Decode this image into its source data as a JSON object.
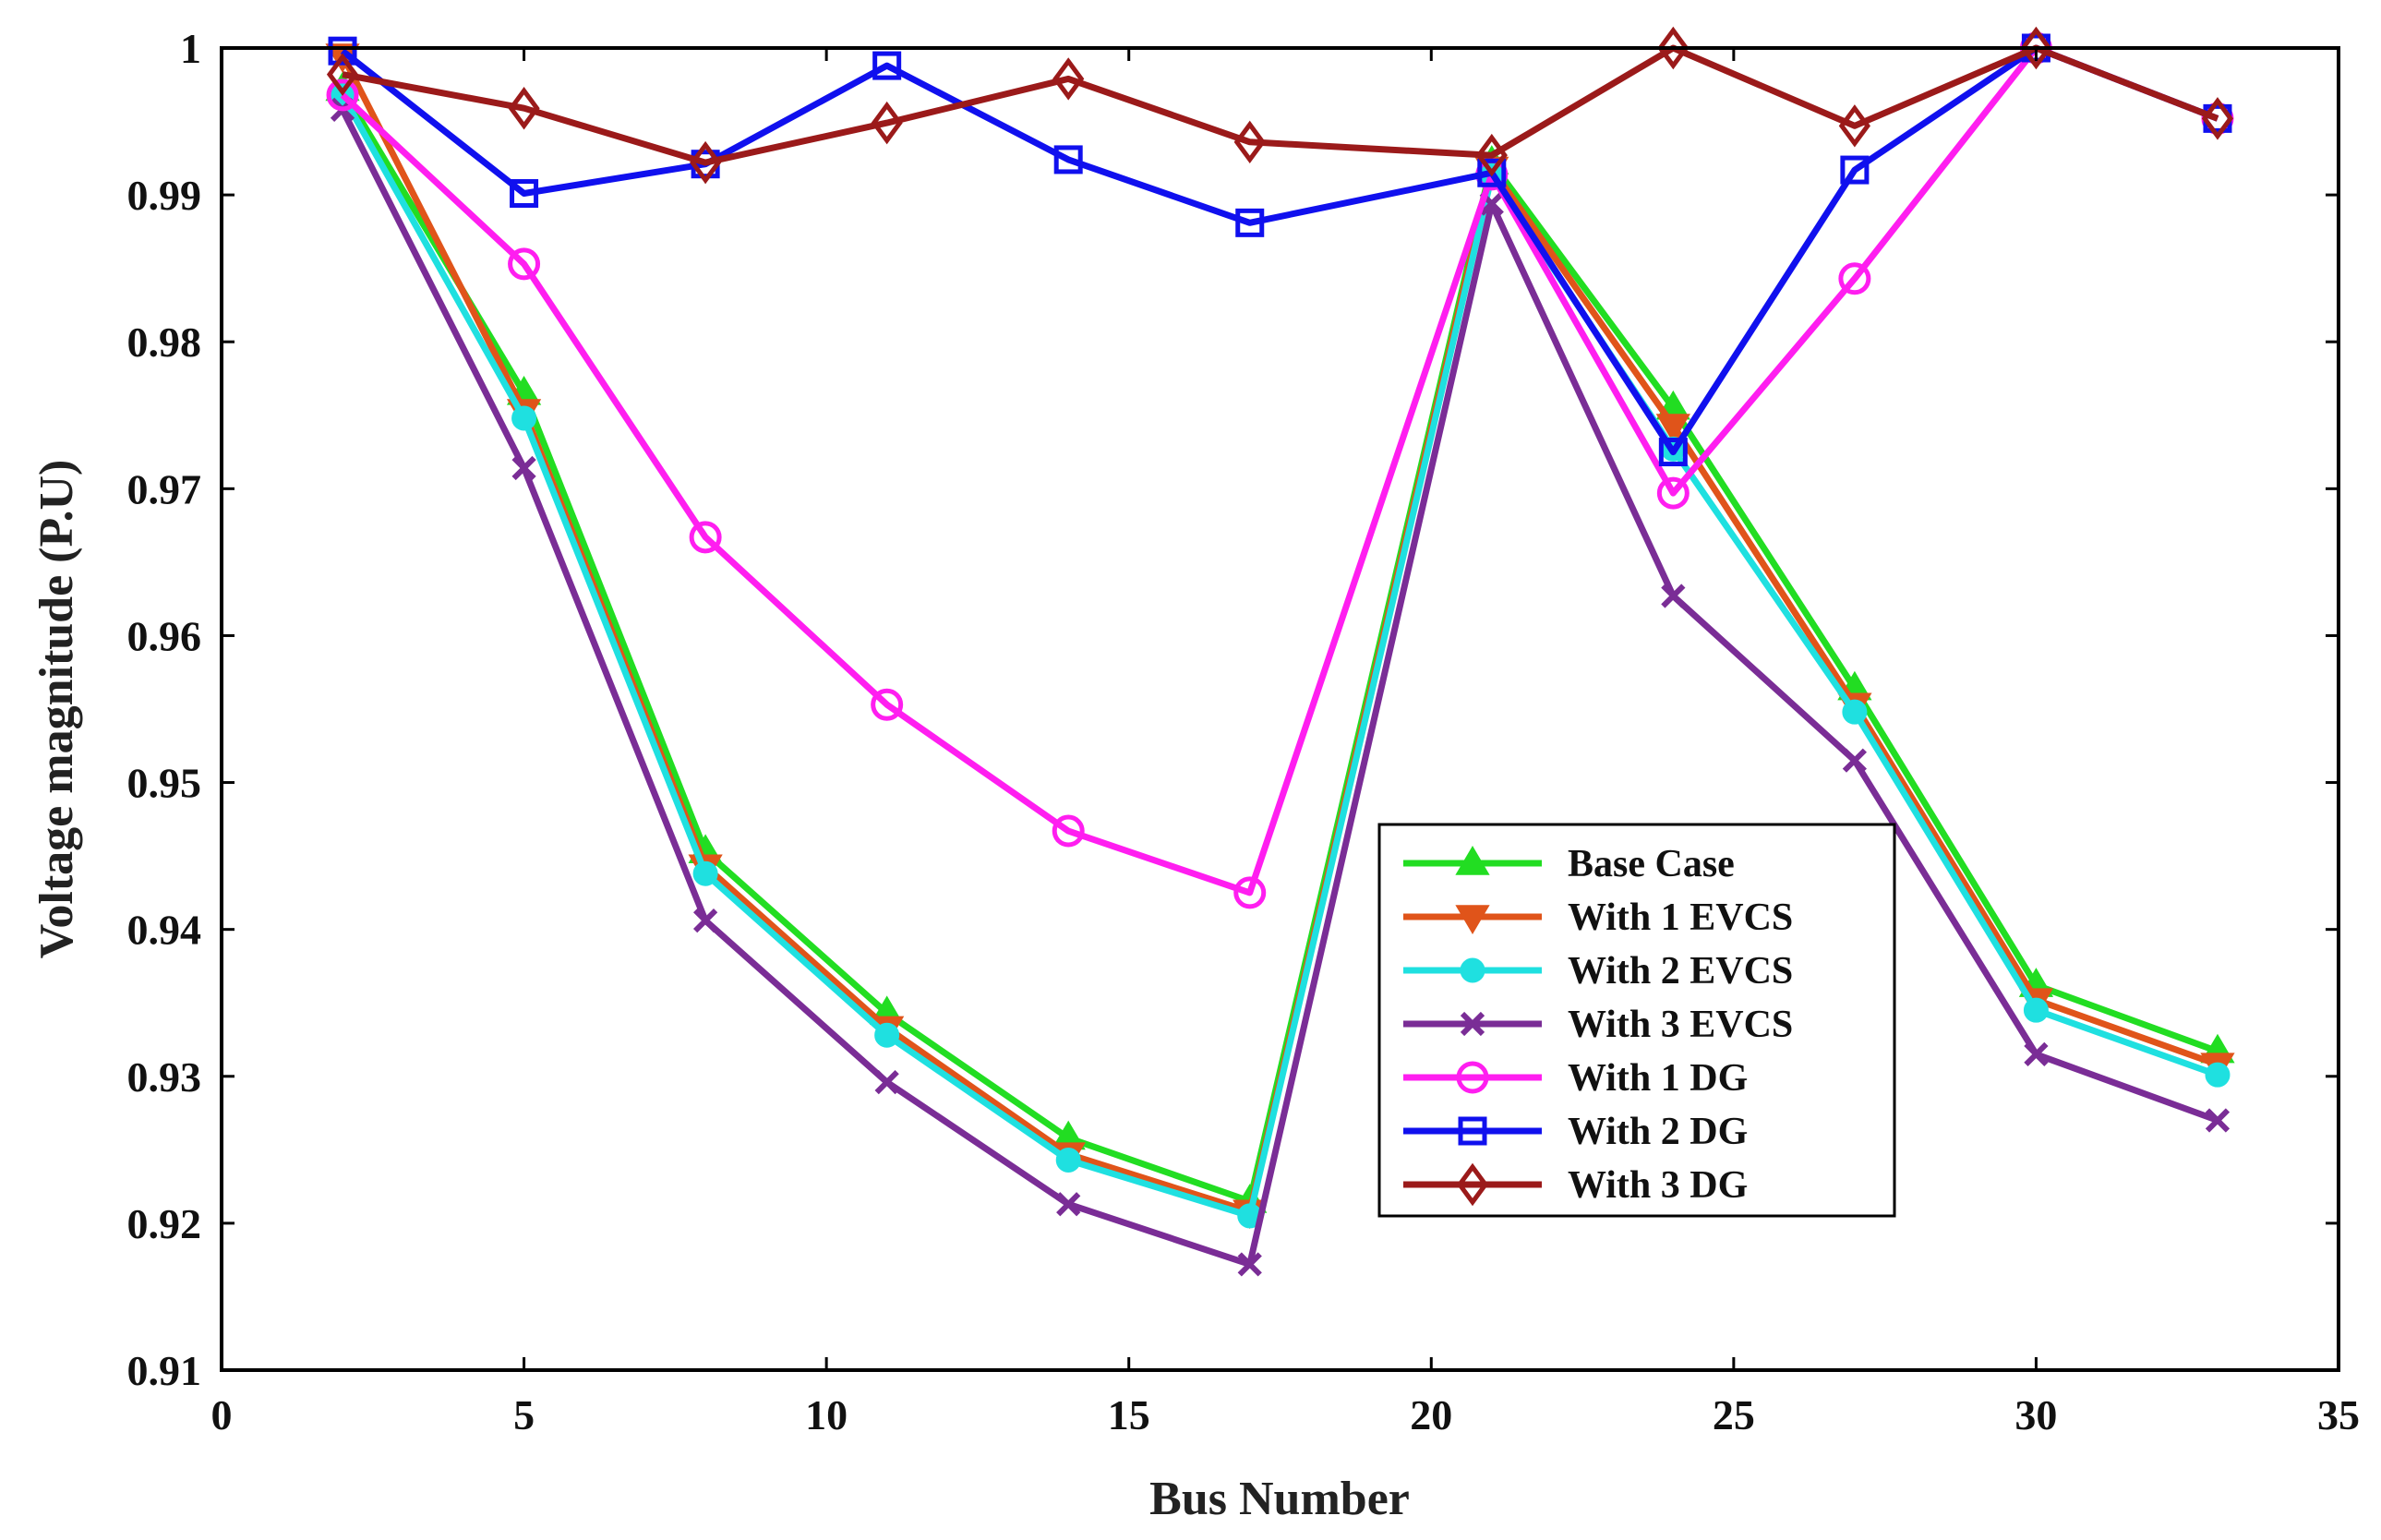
{
  "chart_data": {
    "type": "line",
    "title": "",
    "xlabel": "Bus Number",
    "ylabel": "Voltage magnitude (P.U)",
    "xlim": [
      0,
      35
    ],
    "ylim": [
      0.91,
      1.0
    ],
    "xticks": [
      0,
      5,
      10,
      15,
      20,
      25,
      30,
      35
    ],
    "xtick_labels": [
      "0",
      "5",
      "10",
      "15",
      "20",
      "25",
      "30",
      "35"
    ],
    "yticks": [
      0.91,
      0.92,
      0.93,
      0.94,
      0.95,
      0.96,
      0.97,
      0.98,
      0.99,
      1.0
    ],
    "ytick_labels": [
      "0.91",
      "0.92",
      "0.93",
      "0.94",
      "0.95",
      "0.96",
      "0.97",
      "0.98",
      "0.99",
      "1"
    ],
    "legend_position": "center-right",
    "grid": false,
    "x": [
      2,
      5,
      8,
      11,
      14,
      17,
      21,
      24,
      27,
      30,
      33
    ],
    "series": [
      {
        "name": "Base Case",
        "color": "#22dd22",
        "marker": "triangle-up",
        "values": [
          0.9972,
          0.9765,
          0.9453,
          0.9343,
          0.9258,
          0.9215,
          0.9922,
          0.9755,
          0.9564,
          0.9362,
          0.9317
        ]
      },
      {
        "name": "With 1 EVCS",
        "color": "#e0541a",
        "marker": "triangle-down",
        "values": [
          0.9995,
          0.9753,
          0.9443,
          0.9333,
          0.9247,
          0.9208,
          0.9918,
          0.9743,
          0.9553,
          0.9352,
          0.9308
        ]
      },
      {
        "name": "With 2 EVCS",
        "color": "#1fe0e0",
        "marker": "circle-filled",
        "values": [
          0.9968,
          0.9748,
          0.9438,
          0.9328,
          0.9243,
          0.9205,
          0.9913,
          0.9727,
          0.9548,
          0.9345,
          0.9301
        ]
      },
      {
        "name": "With 3 EVCS",
        "color": "#7a2d96",
        "marker": "x",
        "values": [
          0.9958,
          0.9714,
          0.9406,
          0.9296,
          0.9213,
          0.9172,
          0.9894,
          0.9627,
          0.9515,
          0.9315,
          0.927
        ]
      },
      {
        "name": "With 1 DG",
        "color": "#ff1ef0",
        "marker": "circle-open",
        "values": [
          0.9968,
          0.9853,
          0.9667,
          0.9553,
          0.9467,
          0.9425,
          0.9914,
          0.9697,
          0.9843,
          1.0,
          0.9952
        ]
      },
      {
        "name": "With 2 DG",
        "color": "#1010ee",
        "marker": "square",
        "values": [
          0.9998,
          0.9901,
          0.9921,
          0.9988,
          0.9924,
          0.9881,
          0.9915,
          0.9725,
          0.9917,
          1.0,
          0.9952
        ]
      },
      {
        "name": "With 3 DG",
        "color": "#9b1a1a",
        "marker": "diamond",
        "values": [
          0.9982,
          0.9959,
          0.9922,
          0.9949,
          0.9979,
          0.9936,
          0.9927,
          1.0,
          0.9947,
          1.0,
          0.9952
        ]
      }
    ]
  }
}
